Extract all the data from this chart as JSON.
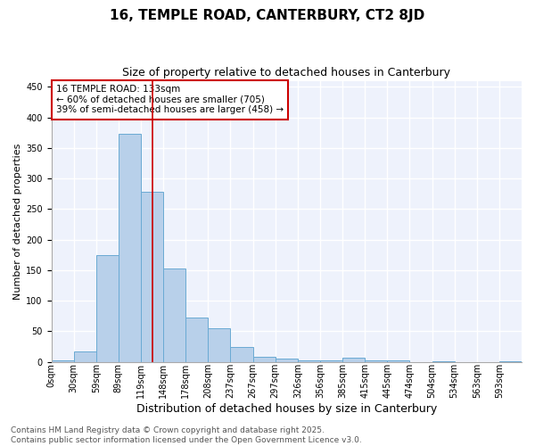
{
  "title": "16, TEMPLE ROAD, CANTERBURY, CT2 8JD",
  "subtitle": "Size of property relative to detached houses in Canterbury",
  "xlabel": "Distribution of detached houses by size in Canterbury",
  "ylabel": "Number of detached properties",
  "bar_values": [
    2,
    17,
    175,
    373,
    278,
    153,
    72,
    55,
    25,
    9,
    5,
    2,
    3,
    7,
    2,
    2,
    0,
    1,
    0,
    0,
    1
  ],
  "bin_labels": [
    "0sqm",
    "30sqm",
    "59sqm",
    "89sqm",
    "119sqm",
    "148sqm",
    "178sqm",
    "208sqm",
    "237sqm",
    "267sqm",
    "297sqm",
    "326sqm",
    "356sqm",
    "385sqm",
    "415sqm",
    "445sqm",
    "474sqm",
    "504sqm",
    "534sqm",
    "563sqm",
    "593sqm"
  ],
  "bin_width": 29,
  "bar_color": "#b8d0ea",
  "bar_edge_color": "#6aaad4",
  "property_size_bin": 4.5,
  "vline_color": "#cc0000",
  "annotation_text": "16 TEMPLE ROAD: 133sqm\n← 60% of detached houses are smaller (705)\n39% of semi-detached houses are larger (458) →",
  "annotation_box_color": "#cc0000",
  "ylim": [
    0,
    460
  ],
  "yticks": [
    0,
    50,
    100,
    150,
    200,
    250,
    300,
    350,
    400,
    450
  ],
  "bg_color": "#eef2fc",
  "grid_color": "#ffffff",
  "footer_text": "Contains HM Land Registry data © Crown copyright and database right 2025.\nContains public sector information licensed under the Open Government Licence v3.0.",
  "title_fontsize": 11,
  "subtitle_fontsize": 9,
  "ylabel_fontsize": 8,
  "xlabel_fontsize": 9,
  "annotation_fontsize": 7.5,
  "footer_fontsize": 6.5,
  "tick_fontsize": 7
}
